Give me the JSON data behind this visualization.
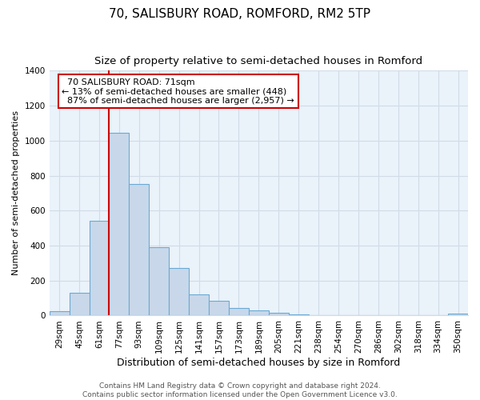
{
  "title": "70, SALISBURY ROAD, ROMFORD, RM2 5TP",
  "subtitle": "Size of property relative to semi-detached houses in Romford",
  "xlabel": "Distribution of semi-detached houses by size in Romford",
  "ylabel": "Number of semi-detached properties",
  "footer_line1": "Contains HM Land Registry data © Crown copyright and database right 2024.",
  "footer_line2": "Contains public sector information licensed under the Open Government Licence v3.0.",
  "bar_labels": [
    "29sqm",
    "45sqm",
    "61sqm",
    "77sqm",
    "93sqm",
    "109sqm",
    "125sqm",
    "141sqm",
    "157sqm",
    "173sqm",
    "189sqm",
    "205sqm",
    "221sqm",
    "238sqm",
    "254sqm",
    "270sqm",
    "286sqm",
    "302sqm",
    "318sqm",
    "334sqm",
    "350sqm"
  ],
  "bar_values": [
    25,
    130,
    540,
    1045,
    750,
    390,
    270,
    120,
    85,
    45,
    30,
    15,
    5,
    0,
    0,
    0,
    0,
    0,
    0,
    0,
    10
  ],
  "bar_color": "#c8d8ea",
  "bar_edge_color": "#6aaad4",
  "bar_edge_width": 0.8,
  "annotation_title": "70 SALISBURY ROAD: 71sqm",
  "annotation_smaller_pct": "13%",
  "annotation_smaller_n": "448",
  "annotation_larger_pct": "87%",
  "annotation_larger_n": "2,957",
  "annotation_box_color": "#ffffff",
  "annotation_box_edge_color": "#cc0000",
  "vline_color": "#cc0000",
  "vline_x_index": 2.5,
  "ylim": [
    0,
    1400
  ],
  "yticks": [
    0,
    200,
    400,
    600,
    800,
    1000,
    1200,
    1400
  ],
  "title_fontsize": 11,
  "subtitle_fontsize": 9.5,
  "xlabel_fontsize": 9,
  "ylabel_fontsize": 8,
  "tick_fontsize": 7.5,
  "annotation_fontsize": 8,
  "footer_fontsize": 6.5,
  "background_color": "#ffffff",
  "grid_color": "#d0dce8",
  "plot_bg_color": "#eaf2fa"
}
